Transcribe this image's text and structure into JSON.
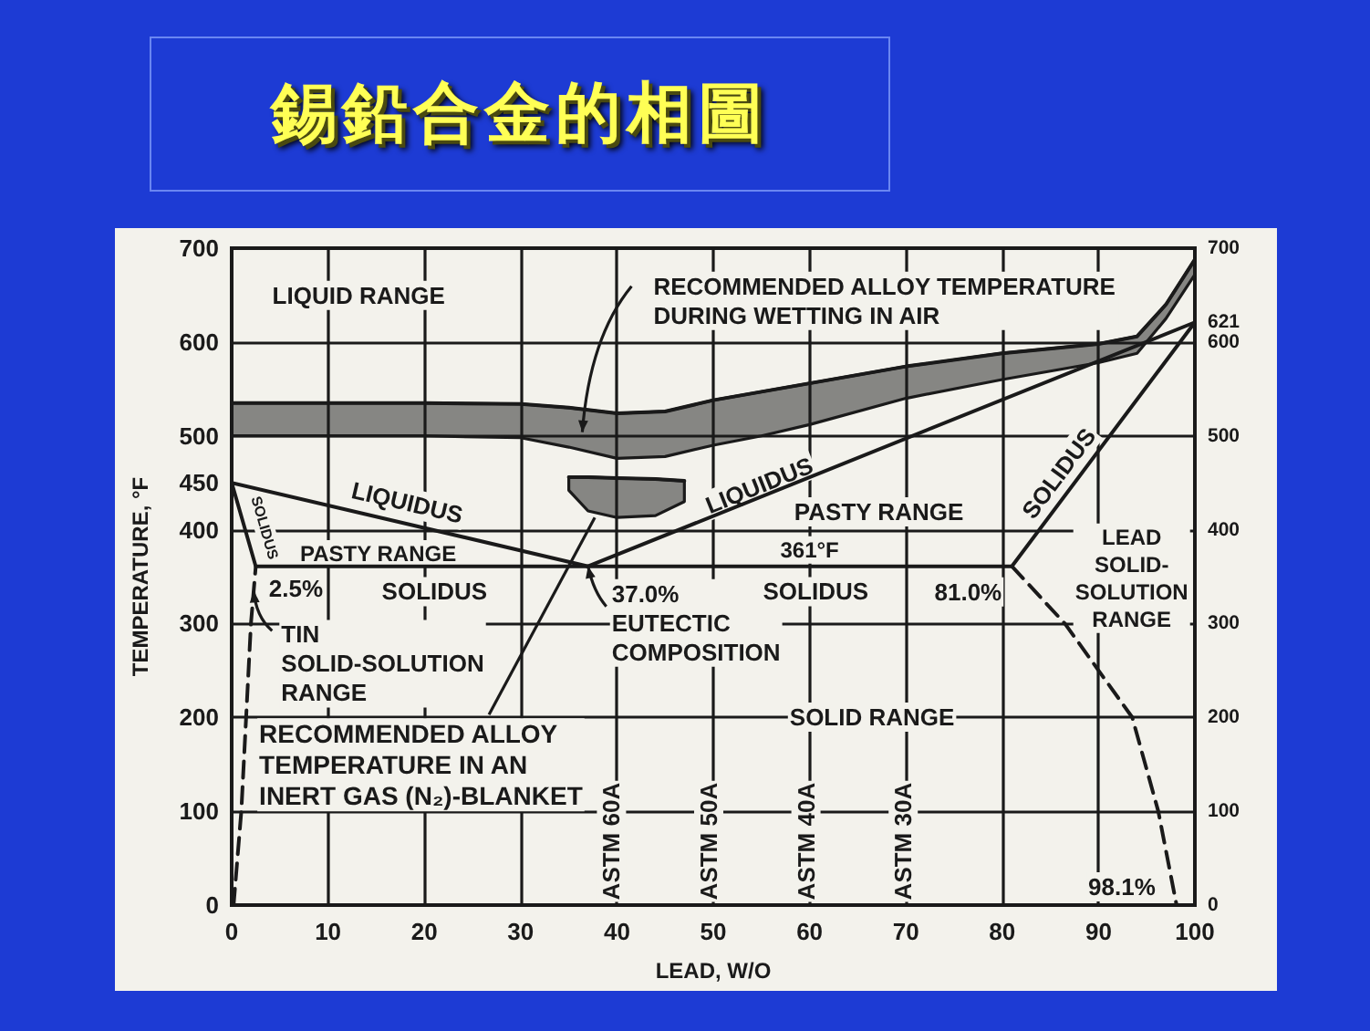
{
  "chart_data": {
    "type": "line",
    "title": "錫鉛合金的相圖",
    "xlabel": "LEAD, W/O",
    "ylabel": "TEMPERATURE, °F",
    "xlim": [
      0,
      100
    ],
    "xticks": [
      0,
      10,
      20,
      30,
      40,
      50,
      60,
      70,
      80,
      90,
      100
    ],
    "ylim": [
      0,
      700
    ],
    "yticks": [
      0,
      100,
      200,
      300,
      400,
      450,
      500,
      600,
      700
    ],
    "y2lim": [
      0,
      700
    ],
    "y2ticks": [
      0,
      100,
      200,
      300,
      400,
      500,
      600,
      621,
      700
    ],
    "grid": true,
    "series": [
      {
        "color": "#1a1a1a",
        "x": [
          0,
          37,
          100
        ],
        "values": [
          450,
          361,
          621
        ]
      },
      {
        "color": "#1a1a1a",
        "x": [
          0,
          2.5,
          81,
          100
        ],
        "values": [
          450,
          361,
          361,
          621
        ]
      },
      {
        "color": "#1a1a1a",
        "line_style": "dashed",
        "x": [
          0.2,
          1,
          1.5,
          2,
          2.5
        ],
        "values": [
          0,
          100,
          200,
          300,
          361
        ]
      },
      {
        "color": "#1a1a1a",
        "line_style": "dashed",
        "x": [
          81,
          86.5,
          90,
          93.5,
          96.2,
          98.1
        ],
        "values": [
          361,
          300,
          250,
          200,
          100,
          0
        ]
      },
      {
        "color": "#1a1a1a",
        "x": [
          0,
          10,
          20,
          30,
          35,
          40,
          45,
          50,
          55,
          60,
          70,
          80,
          90,
          94,
          97,
          100
        ],
        "values": [
          535,
          535,
          535,
          534,
          530,
          524,
          526,
          538,
          547,
          556,
          574,
          588,
          598,
          606,
          640,
          688
        ],
        "lower": [
          500,
          500,
          500,
          498,
          488,
          476,
          478,
          490,
          500,
          512,
          540,
          560,
          578,
          588,
          625,
          672
        ],
        "upper": [
          535,
          535,
          535,
          534,
          530,
          524,
          526,
          538,
          547,
          556,
          574,
          588,
          598,
          606,
          640,
          688
        ]
      },
      {
        "color": "#1a1a1a",
        "x": [
          35,
          37,
          40,
          44,
          47
        ],
        "values": [
          456,
          456,
          455,
          454,
          452
        ],
        "lower": [
          442,
          420,
          413,
          415,
          430
        ],
        "upper": [
          456,
          456,
          455,
          454,
          452
        ]
      }
    ],
    "annotations": [
      "LIQUID RANGE",
      "RECOMMENDED ALLOY TEMPERATURE\nDURING WETTING IN AIR",
      "LIQUIDUS",
      {
        "text": "SOLIDUS",
        "x": 3.4,
        "y": 402
      },
      "PASTY RANGE",
      {
        "text": "2.5%",
        "x": 2.5,
        "y": 361
      },
      "SOLIDUS",
      {
        "text": "37.0%\nEUTECTIC\nCOMPOSITION",
        "x": 37,
        "y": 361
      },
      "LIQUIDUS",
      "PASTY RANGE",
      "SOLIDUS",
      "LEAD\nSOLID-\nSOLUTION\nRANGE",
      {
        "text": "361°F",
        "x": 60,
        "y": 361
      },
      "SOLIDUS",
      {
        "text": "81.0%",
        "x": 81,
        "y": 361
      },
      {
        "text": "TIN\nSOLID-SOLUTION\nRANGE",
        "x": 2.3,
        "y": 335
      },
      {
        "text": "RECOMMENDED ALLOY\nTEMPERATURE IN AN\nINERT GAS (N₂)-BLANKET",
        "x": 37.7,
        "y": 413
      },
      "SOLID RANGE",
      "ASTM 60A",
      "ASTM 50A",
      "ASTM 40A",
      "ASTM 30A",
      {
        "text": "98.1%",
        "x": 98.1,
        "y": 0
      }
    ]
  }
}
